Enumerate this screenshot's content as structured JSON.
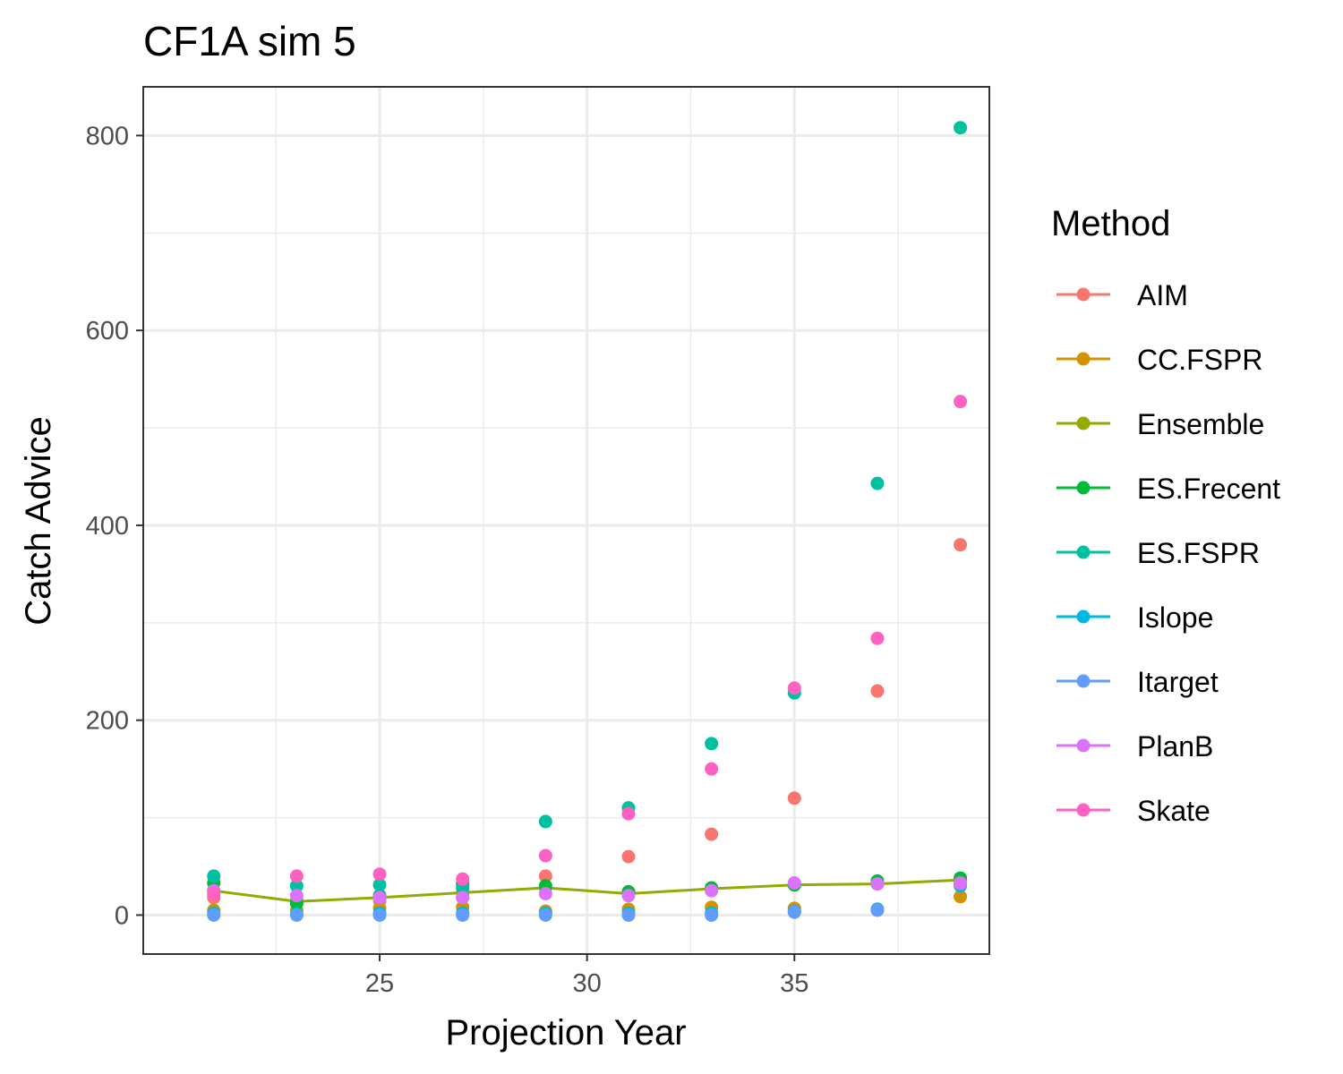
{
  "chart_data": {
    "type": "scatter",
    "title": "CF1A sim 5",
    "xlabel": "Projection Year",
    "ylabel": "Catch Advice",
    "xlim": [
      19.3,
      39.7
    ],
    "ylim": [
      -40,
      850
    ],
    "xticks": [
      25,
      30,
      35
    ],
    "yticks": [
      0,
      200,
      400,
      600,
      800
    ],
    "xticks_labels": [
      "25",
      "30",
      "35"
    ],
    "yticks_labels": [
      "0",
      "200",
      "400",
      "600",
      "800"
    ],
    "grid": true,
    "legend_title": "Method",
    "legend_position": "right",
    "x": [
      21,
      23,
      25,
      27,
      29,
      31,
      33,
      35,
      37,
      39
    ],
    "series": [
      {
        "name": "AIM",
        "color": "#F8766D",
        "values": [
          18,
          15,
          15,
          18,
          40,
          60,
          83,
          120,
          230,
          380
        ]
      },
      {
        "name": "CC.FSPR",
        "color": "#D39200",
        "values": [
          5,
          5,
          7,
          8,
          4,
          6,
          8,
          7,
          6,
          19
        ]
      },
      {
        "name": "Ensemble",
        "color": "#93AA00",
        "line": true,
        "values": [
          25,
          14,
          18,
          23,
          28,
          22,
          27,
          31,
          32,
          36
        ]
      },
      {
        "name": "ES.Frecent",
        "color": "#00BA38",
        "values": [
          33,
          12,
          20,
          32,
          30,
          24,
          28,
          31,
          35,
          38
        ]
      },
      {
        "name": "ES.FSPR",
        "color": "#00C19F",
        "values": [
          40,
          30,
          31,
          28,
          96,
          110,
          176,
          228,
          443,
          808
        ]
      },
      {
        "name": "Islope",
        "color": "#00B9E3",
        "values": [
          2,
          1,
          2,
          2,
          2,
          2,
          2,
          4,
          6,
          30
        ]
      },
      {
        "name": "Itarget",
        "color": "#619CFF",
        "values": [
          0,
          0,
          0,
          0,
          0,
          0,
          0,
          3,
          5,
          32
        ]
      },
      {
        "name": "PlanB",
        "color": "#DB72FB",
        "values": [
          25,
          20,
          18,
          18,
          22,
          20,
          25,
          33,
          32,
          33
        ]
      },
      {
        "name": "Skate",
        "color": "#FF61C3",
        "values": [
          22,
          40,
          42,
          37,
          61,
          104,
          150,
          233,
          284,
          527
        ]
      }
    ]
  }
}
